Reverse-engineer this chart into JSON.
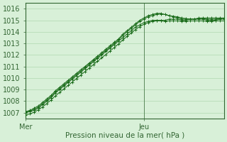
{
  "xlabel": "Pression niveau de la mer( hPa )",
  "bg_color": "#d8f0d8",
  "grid_color": "#b0d8b0",
  "line_color": "#1a6b1a",
  "spine_color": "#336633",
  "ylim": [
    1006.5,
    1016.5
  ],
  "xlim": [
    0,
    47
  ],
  "xtick_positions": [
    0,
    28
  ],
  "xtick_labels": [
    "Mer",
    "Jeu"
  ],
  "ytick_start": 1007,
  "ytick_end": 1016,
  "vline_x": 28,
  "series": [
    [
      1007.0,
      1007.1,
      1007.2,
      1007.4,
      1007.7,
      1008.0,
      1008.3,
      1008.7,
      1009.0,
      1009.3,
      1009.6,
      1009.9,
      1010.2,
      1010.5,
      1010.8,
      1011.1,
      1011.4,
      1011.7,
      1012.0,
      1012.3,
      1012.6,
      1012.9,
      1013.2,
      1013.5,
      1013.8,
      1014.1,
      1014.4,
      1014.6,
      1014.8,
      1014.9,
      1015.0,
      1015.0,
      1015.0,
      1015.0,
      1015.1,
      1015.1,
      1015.1,
      1015.0,
      1015.0,
      1015.1,
      1015.1,
      1015.1,
      1015.1,
      1015.0,
      1015.0,
      1015.0,
      1015.1,
      1015.1
    ],
    [
      1007.1,
      1007.2,
      1007.4,
      1007.6,
      1007.9,
      1008.2,
      1008.5,
      1008.9,
      1009.2,
      1009.5,
      1009.8,
      1010.1,
      1010.4,
      1010.7,
      1011.0,
      1011.3,
      1011.6,
      1011.9,
      1012.2,
      1012.5,
      1012.8,
      1013.1,
      1013.4,
      1013.8,
      1014.1,
      1014.4,
      1014.7,
      1015.0,
      1015.2,
      1015.4,
      1015.5,
      1015.6,
      1015.6,
      1015.5,
      1015.4,
      1015.3,
      1015.2,
      1015.1,
      1015.1,
      1015.1,
      1015.1,
      1015.2,
      1015.2,
      1015.2,
      1015.2,
      1015.2,
      1015.2,
      1015.2
    ],
    [
      1007.0,
      1007.15,
      1007.3,
      1007.5,
      1007.8,
      1008.1,
      1008.4,
      1008.8,
      1009.1,
      1009.4,
      1009.7,
      1010.0,
      1010.3,
      1010.6,
      1010.9,
      1011.2,
      1011.5,
      1011.8,
      1012.1,
      1012.4,
      1012.7,
      1013.0,
      1013.3,
      1013.7,
      1014.0,
      1014.3,
      1014.6,
      1014.9,
      1015.1,
      1015.3,
      1015.4,
      1015.5,
      1015.55,
      1015.5,
      1015.4,
      1015.35,
      1015.3,
      1015.2,
      1015.15,
      1015.1,
      1015.1,
      1015.15,
      1015.15,
      1015.1,
      1015.1,
      1015.1,
      1015.15,
      1015.15
    ],
    [
      1006.8,
      1006.9,
      1007.05,
      1007.25,
      1007.5,
      1007.8,
      1008.1,
      1008.45,
      1008.75,
      1009.05,
      1009.35,
      1009.65,
      1009.95,
      1010.25,
      1010.55,
      1010.85,
      1011.15,
      1011.45,
      1011.75,
      1012.05,
      1012.35,
      1012.65,
      1012.95,
      1013.3,
      1013.6,
      1013.9,
      1014.2,
      1014.45,
      1014.65,
      1014.8,
      1014.9,
      1014.95,
      1014.95,
      1014.9,
      1014.95,
      1014.95,
      1014.95,
      1014.9,
      1014.9,
      1014.95,
      1014.95,
      1014.95,
      1014.95,
      1014.9,
      1014.9,
      1014.95,
      1014.95,
      1014.95
    ]
  ]
}
